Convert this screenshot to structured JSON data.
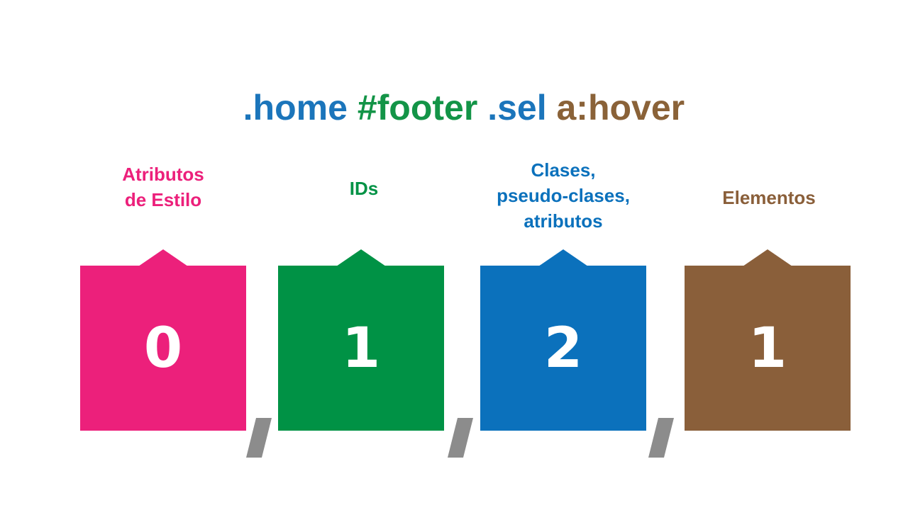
{
  "selector": {
    "parts": [
      {
        "text": ".home",
        "color": "#1b75bb"
      },
      {
        "text": " ",
        "color": "#ffffff"
      },
      {
        "text": "#footer",
        "color": "#139447"
      },
      {
        "text": " ",
        "color": "#ffffff"
      },
      {
        "text": ".sel",
        "color": "#1b75bb"
      },
      {
        "text": " ",
        "color": "#ffffff"
      },
      {
        "text": "a:hover",
        "color": "#8a6238"
      }
    ]
  },
  "columns": [
    {
      "label": "Atributos\nde Estilo",
      "value": "0",
      "color": "#ec207b"
    },
    {
      "label": "IDs",
      "value": "1",
      "color": "#009245"
    },
    {
      "label": "Clases,\npseudo-clases,\natributos",
      "value": "2",
      "color": "#0b71bc"
    },
    {
      "label": "Elementos",
      "value": "1",
      "color": "#8a5f3a"
    }
  ],
  "separator_color": "#8c8c8c"
}
